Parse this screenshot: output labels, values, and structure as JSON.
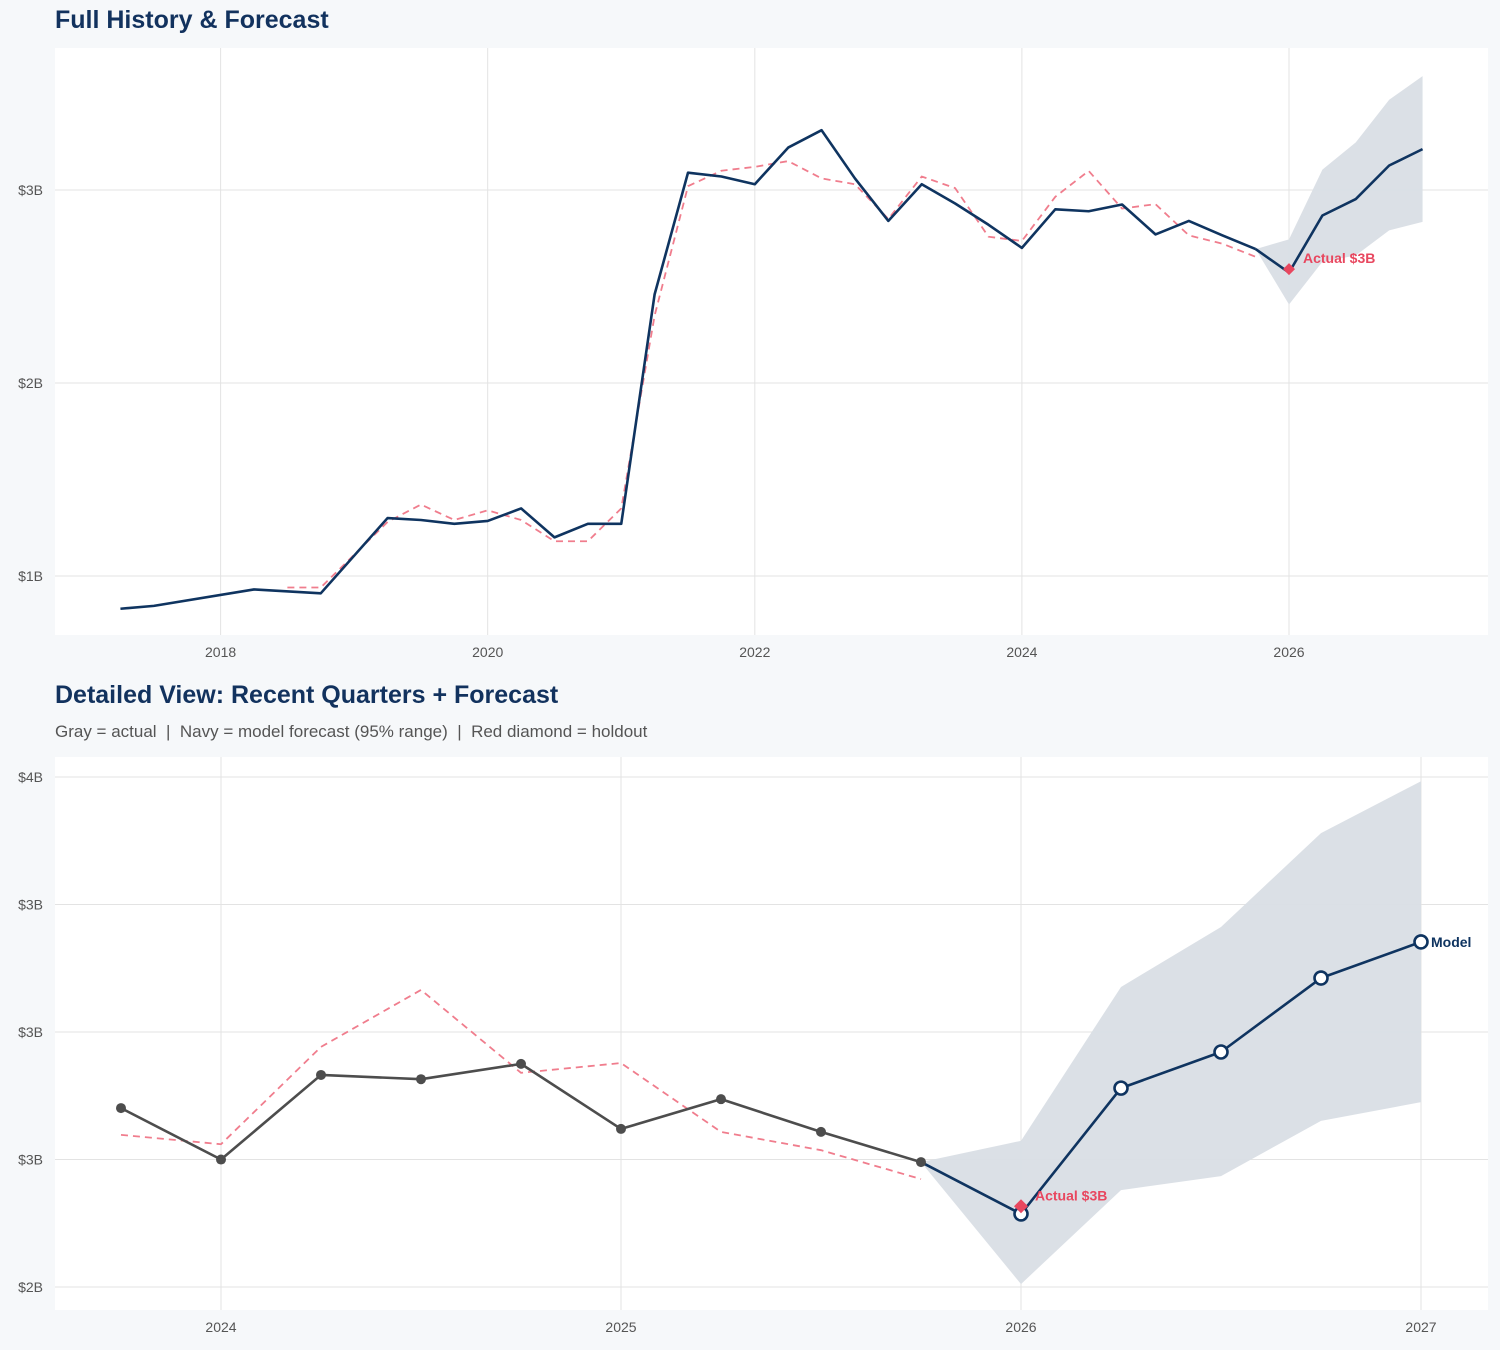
{
  "colors": {
    "navy": "#0f3460",
    "red": "#e8475f",
    "dashed": "#f07d8d",
    "gray": "#4d4d4d",
    "band": "#d9dee5",
    "grid": "#e3e3e3"
  },
  "chart_data": [
    {
      "type": "line",
      "title": "Full History & Forecast",
      "xlim": [
        2016.76,
        2027.49
      ],
      "ylim": [
        0.694,
        3.736
      ],
      "grid": true,
      "x_ticks": [
        2018,
        2020,
        2022,
        2024,
        2026
      ],
      "x_tick_labels": [
        "2018",
        "2020",
        "2022",
        "2024",
        "2026"
      ],
      "y_ticks": [
        1,
        2,
        3
      ],
      "y_tick_labels": [
        "$1B",
        "$2B",
        "$3B"
      ],
      "actual": {
        "color": "navy",
        "x": [
          2017.25,
          2017.5,
          2018.25,
          2018.75,
          2019.25,
          2019.5,
          2019.75,
          2020,
          2020.25,
          2020.5,
          2020.75,
          2021,
          2021.25,
          2021.5,
          2021.75,
          2022,
          2022.25,
          2022.5,
          2022.75,
          2023,
          2023.25,
          2023.5,
          2023.75,
          2024,
          2024.25,
          2024.5,
          2024.75,
          2025,
          2025.25,
          2025.5,
          2025.75
        ],
        "y": [
          0.83,
          0.845,
          0.93,
          0.91,
          1.3,
          1.29,
          1.27,
          1.285,
          1.35,
          1.2,
          1.27,
          1.27,
          2.46,
          3.09,
          3.07,
          3.03,
          3.22,
          3.31,
          3.06,
          2.84,
          3.03,
          2.93,
          2.82,
          2.7,
          2.9,
          2.89,
          2.925,
          2.77,
          2.84,
          2.765,
          2.694
        ]
      },
      "dashed": {
        "x": [
          2018.5,
          2018.75,
          2019.25,
          2019.5,
          2019.75,
          2020,
          2020.25,
          2020.5,
          2020.75,
          2021,
          2021.25,
          2021.5,
          2021.75,
          2022,
          2022.25,
          2022.5,
          2022.75,
          2023,
          2023.25,
          2023.5,
          2023.75,
          2024,
          2024.25,
          2024.5,
          2024.75,
          2025,
          2025.25,
          2025.5,
          2025.75
        ],
        "y": [
          0.94,
          0.94,
          1.28,
          1.37,
          1.29,
          1.34,
          1.29,
          1.18,
          1.18,
          1.35,
          2.35,
          3.02,
          3.1,
          3.12,
          3.15,
          3.06,
          3.03,
          2.85,
          3.07,
          3.01,
          2.758,
          2.736,
          2.965,
          3.099,
          2.904,
          2.927,
          2.765,
          2.722,
          2.654
        ]
      },
      "forecast": {
        "x": [
          2025.75,
          2026,
          2026.25,
          2026.5,
          2026.75,
          2027
        ],
        "y": [
          2.694,
          2.572,
          2.868,
          2.953,
          3.127,
          3.212
        ],
        "lower": [
          2.694,
          2.407,
          2.628,
          2.661,
          2.791,
          2.835
        ],
        "upper": [
          2.694,
          2.744,
          3.106,
          3.247,
          3.468,
          3.59
        ]
      },
      "holdout": {
        "x": 2026,
        "y": 2.59,
        "label": "Actual $3B"
      }
    },
    {
      "type": "line",
      "title": "Detailed View: Recent Quarters + Forecast",
      "subtitle": "Gray = actual  |  Navy = model forecast (95% range)  |  Red diamond = holdout",
      "xlim": [
        2023.585,
        2027.1675
      ],
      "ylim": [
        2.346,
        3.647
      ],
      "grid": true,
      "x_ticks": [
        2024,
        2025,
        2026,
        2027
      ],
      "x_tick_labels": [
        "2024",
        "2025",
        "2026",
        "2027"
      ],
      "y_ticks": [
        2.4,
        2.7,
        3.0,
        3.3,
        3.6
      ],
      "y_tick_labels": [
        "$2B",
        "$3B",
        "$3B",
        "$3B",
        "$4B"
      ],
      "actual": {
        "color": "gray",
        "markers": true,
        "x": [
          2023.75,
          2024,
          2024.25,
          2024.5,
          2024.75,
          2025,
          2025.25,
          2025.5,
          2025.75
        ],
        "y": [
          2.821,
          2.7,
          2.899,
          2.889,
          2.925,
          2.772,
          2.842,
          2.765,
          2.694
        ]
      },
      "dashed": {
        "x": [
          2023.75,
          2024,
          2024.25,
          2024.5,
          2024.75,
          2025,
          2025.25,
          2025.5,
          2025.75
        ],
        "y": [
          2.758,
          2.736,
          2.965,
          3.099,
          2.904,
          2.927,
          2.765,
          2.722,
          2.654
        ]
      },
      "forecast": {
        "markers": true,
        "x": [
          2025.75,
          2026,
          2026.25,
          2026.5,
          2026.75,
          2027
        ],
        "y": [
          2.694,
          2.572,
          2.868,
          2.953,
          3.127,
          3.212
        ],
        "lower": [
          2.694,
          2.407,
          2.628,
          2.661,
          2.791,
          2.835
        ],
        "upper": [
          2.694,
          2.744,
          3.106,
          3.247,
          3.468,
          3.59
        ],
        "end_label": "Model"
      },
      "holdout": {
        "x": 2026,
        "y": 2.59,
        "label": "Actual $3B"
      }
    }
  ]
}
